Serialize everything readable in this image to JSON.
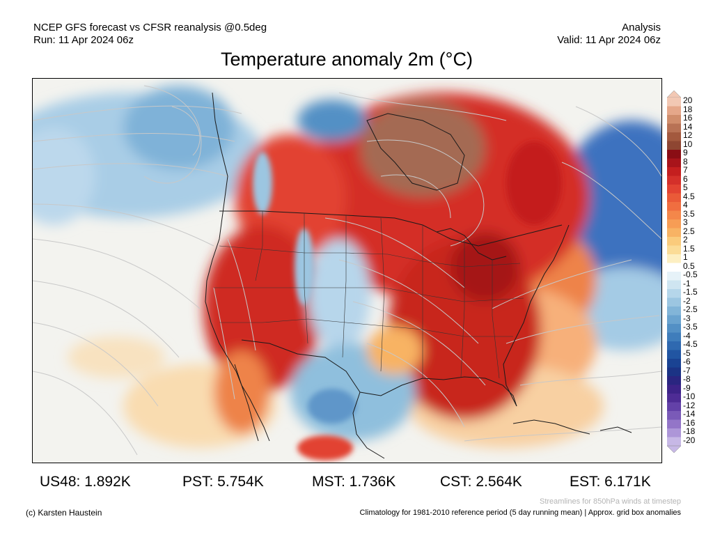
{
  "header": {
    "source_line": "NCEP GFS forecast vs CFSR reanalysis @0.5deg",
    "run_line": "Run: 11 Apr 2024 06z",
    "type_line": "Analysis",
    "valid_line": "Valid: 11 Apr 2024 06z"
  },
  "title": "Temperature anomaly 2m (°C)",
  "colors": {
    "ocean_neutral": "#f3f3ef",
    "cold_mid": "#8fbfdd",
    "cold_deep": "#2e63b6",
    "warm_light": "#f9d7a4",
    "warm_mid": "#ee8349",
    "warm_strong": "#d42e26",
    "warm_deep": "#a51414",
    "brown": "#a46a52",
    "coast_line": "#1a1a1a",
    "streamline": "#c8c8c8"
  },
  "colorbar": {
    "labels": [
      "20",
      "18",
      "16",
      "14",
      "12",
      "10",
      "9",
      "8",
      "7",
      "6",
      "5",
      "4.5",
      "4",
      "3.5",
      "3",
      "2.5",
      "2",
      "1.5",
      "1",
      "0.5",
      "-0.5",
      "-1",
      "-1.5",
      "-2",
      "-2.5",
      "-3",
      "-3.5",
      "-4",
      "-4.5",
      "-5",
      "-6",
      "-7",
      "-8",
      "-9",
      "-10",
      "-12",
      "-14",
      "-16",
      "-18",
      "-20"
    ],
    "colors": [
      "#f2c8b4",
      "#e5a78a",
      "#d08d6c",
      "#b87255",
      "#a3593e",
      "#8e4632",
      "#8a0d14",
      "#a8141a",
      "#c41f1f",
      "#d4302a",
      "#e24332",
      "#ea5a38",
      "#f06e40",
      "#f4874a",
      "#f79d55",
      "#f8b364",
      "#facb7c",
      "#fbdc97",
      "#fdefc2",
      "#ffffff",
      "#e6f2f8",
      "#cfe5f1",
      "#b5d6ea",
      "#9cc6e1",
      "#82b5d8",
      "#6aa3cf",
      "#5390c5",
      "#3f7dbb",
      "#2f69b0",
      "#2155a2",
      "#1a4393",
      "#1b3385",
      "#2a2580",
      "#3d2388",
      "#4e2c95",
      "#6341a8",
      "#7a5ab8",
      "#9375c8",
      "#ad96d8",
      "#c7b8e6"
    ]
  },
  "region_stats": [
    {
      "label": "US48: 1.892K"
    },
    {
      "label": "PST: 5.754K"
    },
    {
      "label": "MST: 1.736K"
    },
    {
      "label": "CST: 2.564K"
    },
    {
      "label": "EST: 6.171K"
    }
  ],
  "footer": {
    "credit": "(c) Karsten Haustein",
    "streamline_note": "Streamlines for 850hPa winds at timestep",
    "climatology_note": "Climatology for 1981-2010 reference period (5 day running mean) | Approx. grid box anomalies"
  }
}
